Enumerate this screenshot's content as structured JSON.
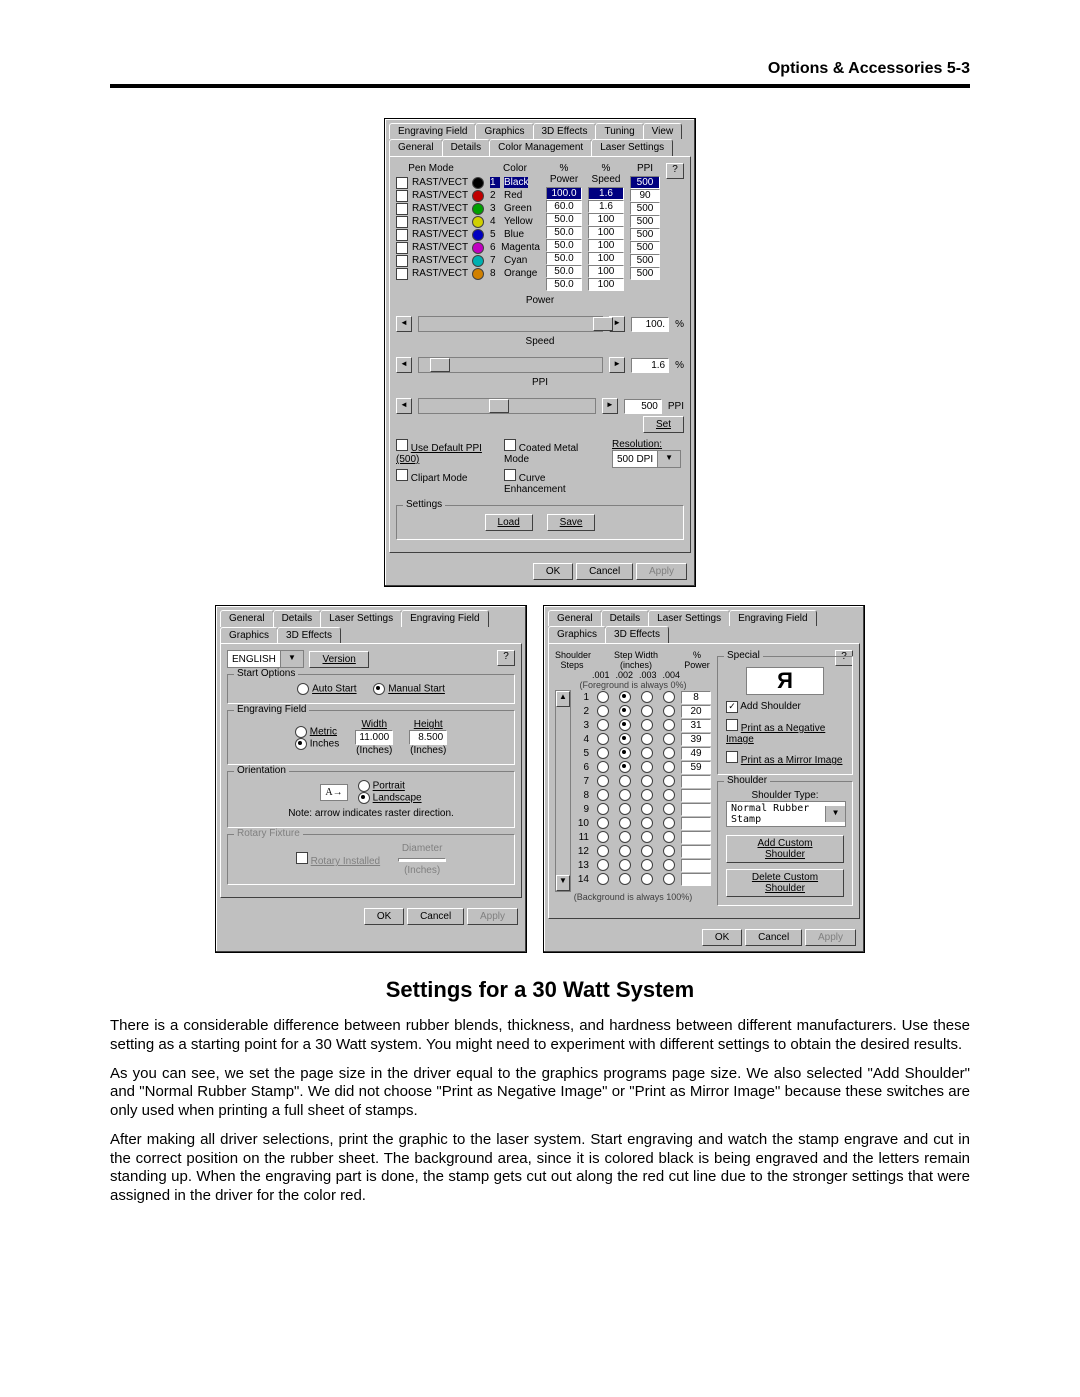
{
  "header": "Options & Accessories 5-3",
  "title": "Settings for a 30 Watt System",
  "paragraphs": [
    "There is a considerable difference between rubber blends, thickness, and hardness between different manufacturers.  Use these setting as a starting point for a 30 Watt system.  You might need to experiment with different settings to obtain the desired results.",
    "As you can see, we set the page size in the driver equal to the graphics programs page size.  We also selected \"Add Shoulder\" and \"Normal Rubber Stamp\".  We did not choose \"Print as Negative Image\" or \"Print as Mirror Image\" because these switches are only used when printing a full sheet of stamps.",
    "After making all driver selections, print the graphic to the laser system.  Start engraving and watch the stamp engrave and cut in the correct position on the rubber sheet.  The background area, since it is colored black is being engraved and the letters remain standing up.  When the engraving part is done, the stamp gets cut out along the red cut line due to the stronger settings that were assigned in the driver for the color red."
  ],
  "buttons": {
    "ok": "OK",
    "cancel": "Cancel",
    "apply": "Apply",
    "load": "Load",
    "save": "Save",
    "set": "Set",
    "help": "?",
    "version": "Version"
  },
  "laser": {
    "tabs_row1": [
      "Engraving Field",
      "Graphics",
      "3D Effects",
      "Tuning",
      "View"
    ],
    "tabs_row2": [
      "General",
      "Details",
      "Color Management",
      "Laser Settings"
    ],
    "headers": [
      "Pen Mode",
      "Color",
      "% Power",
      "% Speed",
      "PPI"
    ],
    "rows": [
      {
        "mode": "RAST/VECT",
        "n": "1",
        "color": "Black",
        "swatch": "#000000",
        "power": "100.0",
        "speed": "1.6",
        "ppi": "500",
        "sel": true
      },
      {
        "mode": "RAST/VECT",
        "n": "2",
        "color": "Red",
        "swatch": "#c00000",
        "power": "60.0",
        "speed": "1.6",
        "ppi": "90"
      },
      {
        "mode": "RAST/VECT",
        "n": "3",
        "color": "Green",
        "swatch": "#00a000",
        "power": "50.0",
        "speed": "100",
        "ppi": "500"
      },
      {
        "mode": "RAST/VECT",
        "n": "4",
        "color": "Yellow",
        "swatch": "#d0d000",
        "power": "50.0",
        "speed": "100",
        "ppi": "500"
      },
      {
        "mode": "RAST/VECT",
        "n": "5",
        "color": "Blue",
        "swatch": "#0000c0",
        "power": "50.0",
        "speed": "100",
        "ppi": "500"
      },
      {
        "mode": "RAST/VECT",
        "n": "6",
        "color": "Magenta",
        "swatch": "#c000c0",
        "power": "50.0",
        "speed": "100",
        "ppi": "500"
      },
      {
        "mode": "RAST/VECT",
        "n": "7",
        "color": "Cyan",
        "swatch": "#00b0b0",
        "power": "50.0",
        "speed": "100",
        "ppi": "500"
      },
      {
        "mode": "RAST/VECT",
        "n": "8",
        "color": "Orange",
        "swatch": "#d08000",
        "power": "50.0",
        "speed": "100",
        "ppi": "500"
      }
    ],
    "sliders": {
      "power": {
        "label": "Power",
        "value": "100.",
        "unit": "%",
        "thumb_pct": 95
      },
      "speed": {
        "label": "Speed",
        "value": "1.6",
        "unit": "%",
        "thumb_pct": 6
      },
      "ppi": {
        "label": "PPI",
        "value": "500",
        "unit": "PPI",
        "thumb_pct": 40
      }
    },
    "checks": {
      "default_ppi": "Use Default PPI (500)",
      "clipart": "Clipart Mode",
      "metal": "Coated Metal Mode",
      "curve": "Curve Enhancement"
    },
    "resolution_label": "Resolution:",
    "resolution_value": "500 DPI",
    "settings_label": "Settings"
  },
  "engr": {
    "tabs": [
      "General",
      "Details",
      "Laser Settings",
      "Engraving Field",
      "Graphics",
      "3D Effects"
    ],
    "active_tab": "Engraving Field",
    "language": "ENGLISH",
    "start": {
      "title": "Start Options",
      "auto": "Auto Start",
      "manual": "Manual Start",
      "sel": "manual"
    },
    "field": {
      "title": "Engraving Field",
      "metric": "Metric",
      "inches": "Inches",
      "sel": "inches",
      "width_label": "Width",
      "height_label": "Height",
      "width": "11.000",
      "height": "8.500",
      "unit": "(Inches)"
    },
    "orient": {
      "title": "Orientation",
      "portrait": "Portrait",
      "landscape": "Landscape",
      "sel": "landscape",
      "note": "Note: arrow indicates raster direction."
    },
    "rotary": {
      "title": "Rotary Fixture",
      "label": "Rotary Installed",
      "diam": "Diameter",
      "unit": "(Inches)"
    }
  },
  "fx": {
    "tabs": [
      "General",
      "Details",
      "Laser Settings",
      "Engraving Field",
      "Graphics",
      "3D Effects"
    ],
    "active_tab": "3D Effects",
    "col_shoulder": "Shoulder\nSteps",
    "col_step": "Step Width\n(inches)",
    "sub_cols": [
      ".001",
      ".002",
      ".003",
      ".004"
    ],
    "col_power": "%\nPower",
    "fg_note": "(Foreground is always 0%)",
    "bg_note": "(Background is always 100%)",
    "rows": [
      {
        "n": "1",
        "sel": 2,
        "pw": "8"
      },
      {
        "n": "2",
        "sel": 2,
        "pw": "20"
      },
      {
        "n": "3",
        "sel": 2,
        "pw": "31"
      },
      {
        "n": "4",
        "sel": 2,
        "pw": "39"
      },
      {
        "n": "5",
        "sel": 2,
        "pw": "49"
      },
      {
        "n": "6",
        "sel": 2,
        "pw": "59"
      },
      {
        "n": "7",
        "sel": -1,
        "pw": ""
      },
      {
        "n": "8",
        "sel": -1,
        "pw": ""
      },
      {
        "n": "9",
        "sel": -1,
        "pw": ""
      },
      {
        "n": "10",
        "sel": -1,
        "pw": ""
      },
      {
        "n": "11",
        "sel": -1,
        "pw": ""
      },
      {
        "n": "12",
        "sel": -1,
        "pw": ""
      },
      {
        "n": "13",
        "sel": -1,
        "pw": ""
      },
      {
        "n": "14",
        "sel": -1,
        "pw": ""
      }
    ],
    "special": {
      "title": "Special",
      "glyph": "Я",
      "add_sh": "Add Shoulder",
      "neg": "Print as a Negative Image",
      "mir": "Print as a Mirror Image"
    },
    "shoulder": {
      "title": "Shoulder",
      "type_label": "Shoulder Type:",
      "type": "Normal Rubber Stamp",
      "add": "Add Custom Shoulder",
      "del": "Delete Custom Shoulder"
    }
  }
}
